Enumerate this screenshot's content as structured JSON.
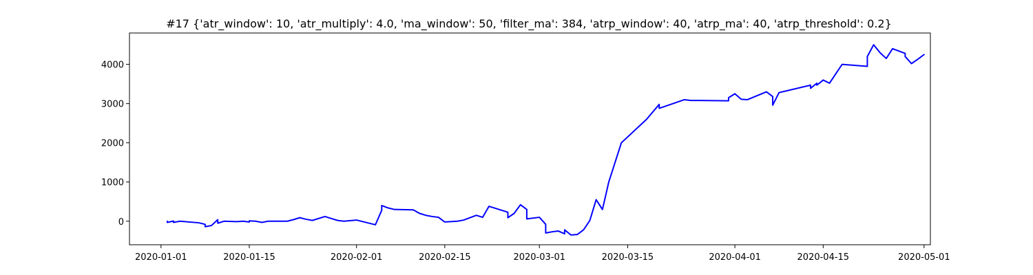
{
  "chart_data": {
    "type": "line",
    "title": "#17 {'atr_window': 10, 'atr_multiply': 4.0, 'ma_window': 50, 'filter_ma': 384, 'atrp_window': 40, 'atrp_ma': 40, 'atrp_threshold': 0.2}",
    "xlabel": "",
    "ylabel": "",
    "x_type": "date",
    "xlim": [
      "2019-12-27",
      "2020-05-02"
    ],
    "ylim": [
      -600,
      4800
    ],
    "x_ticks": [
      "2020-01-01",
      "2020-01-15",
      "2020-02-01",
      "2020-02-15",
      "2020-03-01",
      "2020-03-15",
      "2020-04-01",
      "2020-04-15",
      "2020-05-01"
    ],
    "y_ticks": [
      0,
      1000,
      2000,
      3000,
      4000
    ],
    "grid": false,
    "line_color": "#0000ff",
    "series": [
      {
        "x": [
          "2020-01-02",
          "2020-01-02",
          "2020-01-03",
          "2020-01-03",
          "2020-01-04",
          "2020-01-07",
          "2020-01-08",
          "2020-01-08",
          "2020-01-09",
          "2020-01-10",
          "2020-01-10",
          "2020-01-11",
          "2020-01-13",
          "2020-01-14",
          "2020-01-15",
          "2020-01-15",
          "2020-01-16",
          "2020-01-17",
          "2020-01-18",
          "2020-01-21",
          "2020-01-22",
          "2020-01-23",
          "2020-01-24",
          "2020-01-25",
          "2020-01-27",
          "2020-01-28",
          "2020-01-29",
          "2020-01-30",
          "2020-02-01",
          "2020-02-04",
          "2020-02-05",
          "2020-02-05",
          "2020-02-06",
          "2020-02-07",
          "2020-02-10",
          "2020-02-11",
          "2020-02-12",
          "2020-02-13",
          "2020-02-14",
          "2020-02-15",
          "2020-02-17",
          "2020-02-18",
          "2020-02-20",
          "2020-02-21",
          "2020-02-22",
          "2020-02-25",
          "2020-02-25",
          "2020-02-26",
          "2020-02-27",
          "2020-02-28",
          "2020-02-28",
          "2020-03-01",
          "2020-03-02",
          "2020-03-02",
          "2020-03-03",
          "2020-03-04",
          "2020-03-05",
          "2020-03-05",
          "2020-03-06",
          "2020-03-07",
          "2020-03-08",
          "2020-03-09",
          "2020-03-10",
          "2020-03-11",
          "2020-03-12",
          "2020-03-13",
          "2020-03-14",
          "2020-03-18",
          "2020-03-20",
          "2020-03-20",
          "2020-03-24",
          "2020-03-25",
          "2020-03-25",
          "2020-03-26",
          "2020-03-31",
          "2020-03-31",
          "2020-04-01",
          "2020-04-02",
          "2020-04-03",
          "2020-04-06",
          "2020-04-07",
          "2020-04-07",
          "2020-04-08",
          "2020-04-13",
          "2020-04-13",
          "2020-04-14",
          "2020-04-14",
          "2020-04-15",
          "2020-04-16",
          "2020-04-17",
          "2020-04-18",
          "2020-04-22",
          "2020-04-22",
          "2020-04-23",
          "2020-04-24",
          "2020-04-25",
          "2020-04-26",
          "2020-04-28",
          "2020-04-28",
          "2020-04-29",
          "2020-04-30",
          "2020-05-01"
        ],
        "y": [
          0,
          -30,
          5,
          -30,
          0,
          -40,
          -80,
          -140,
          -110,
          40,
          -50,
          0,
          -10,
          0,
          -20,
          10,
          0,
          -30,
          0,
          0,
          40,
          90,
          50,
          20,
          120,
          70,
          20,
          0,
          30,
          -90,
          280,
          400,
          340,
          300,
          290,
          200,
          150,
          120,
          100,
          -20,
          0,
          30,
          150,
          100,
          380,
          230,
          90,
          200,
          420,
          300,
          60,
          100,
          -80,
          -300,
          -270,
          -250,
          -320,
          -220,
          -350,
          -340,
          -220,
          20,
          550,
          300,
          1000,
          1500,
          2000,
          2600,
          2980,
          2880,
          3100,
          3080,
          3080,
          3080,
          3070,
          3150,
          3250,
          3110,
          3100,
          3300,
          3180,
          2960,
          3280,
          3470,
          3390,
          3520,
          3470,
          3600,
          3520,
          3760,
          4000,
          3950,
          4200,
          4500,
          4300,
          4150,
          4400,
          4280,
          4200,
          4020,
          4130,
          4250
        ]
      }
    ]
  }
}
